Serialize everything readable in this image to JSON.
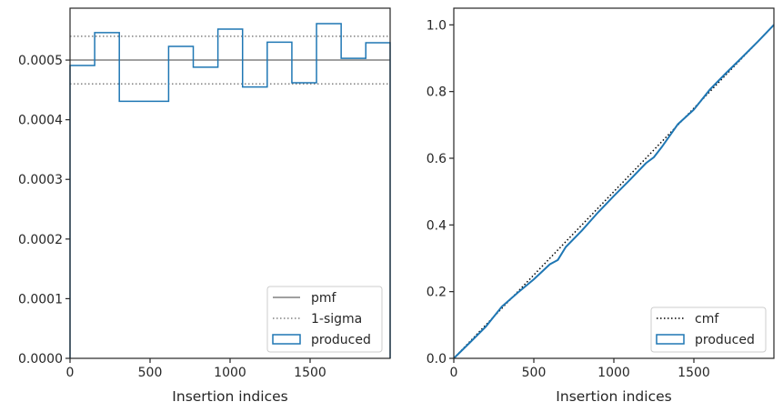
{
  "chart_data": [
    {
      "type": "line",
      "xlabel": "Insertion indices",
      "ylabel": "",
      "xlim": [
        0,
        2000
      ],
      "ylim": [
        0,
        0.000587
      ],
      "xticks": [
        0,
        500,
        1000,
        1500
      ],
      "yticks": [
        0,
        0.0001,
        0.0002,
        0.0003,
        0.0004,
        0.0005
      ],
      "ytick_labels": [
        "0.0000",
        "0.0001",
        "0.0002",
        "0.0003",
        "0.0004",
        "0.0005"
      ],
      "legend_position": "bottom-right",
      "legend": [
        {
          "label": "pmf",
          "style": "solid",
          "color": "#808080"
        },
        {
          "label": "1-sigma",
          "style": "dotted",
          "color": "#808080"
        },
        {
          "label": "produced",
          "style": "box",
          "color": "#1f77b4"
        }
      ],
      "series": [
        {
          "name": "pmf",
          "kind": "hline",
          "y": 0.0005,
          "color": "#808080"
        },
        {
          "name": "1-sigma",
          "kind": "hlines",
          "y": [
            0.00046,
            0.00054
          ],
          "color": "#808080"
        },
        {
          "name": "produced",
          "kind": "step-histogram",
          "color": "#1f77b4",
          "bin_edges": [
            0,
            154,
            308,
            462,
            616,
            770,
            924,
            1078,
            1232,
            1386,
            1540,
            1694,
            1848,
            2000
          ],
          "values": [
            0.000491,
            0.000546,
            0.000431,
            0.000431,
            0.000523,
            0.000488,
            0.000552,
            0.000455,
            0.00053,
            0.000462,
            0.000561,
            0.000503,
            0.000529
          ]
        }
      ]
    },
    {
      "type": "line",
      "xlabel": "Insertion indices",
      "ylabel": "",
      "xlim": [
        0,
        2000
      ],
      "ylim": [
        0,
        1.05
      ],
      "xticks": [
        0,
        500,
        1000,
        1500
      ],
      "yticks": [
        0,
        0.2,
        0.4,
        0.6,
        0.8,
        1.0
      ],
      "ytick_labels": [
        "0.0",
        "0.2",
        "0.4",
        "0.6",
        "0.8",
        "1.0"
      ],
      "legend_position": "bottom-right",
      "legend": [
        {
          "label": "cmf",
          "style": "dotted",
          "color": "#000000"
        },
        {
          "label": "produced",
          "style": "box",
          "color": "#1f77b4"
        }
      ],
      "series": [
        {
          "name": "cmf",
          "kind": "line",
          "x": [
            0,
            2000
          ],
          "y": [
            0,
            1.0
          ],
          "color": "#000000"
        },
        {
          "name": "produced",
          "kind": "line",
          "color": "#1f77b4",
          "x": [
            0,
            100,
            200,
            300,
            400,
            500,
            600,
            650,
            700,
            800,
            900,
            1000,
            1100,
            1200,
            1250,
            1300,
            1400,
            1500,
            1600,
            1700,
            1800,
            1900,
            2000
          ],
          "y": [
            0,
            0.047,
            0.095,
            0.155,
            0.197,
            0.237,
            0.282,
            0.295,
            0.334,
            0.383,
            0.437,
            0.487,
            0.535,
            0.585,
            0.603,
            0.634,
            0.702,
            0.746,
            0.806,
            0.855,
            0.902,
            0.95,
            1.0
          ]
        }
      ]
    }
  ]
}
